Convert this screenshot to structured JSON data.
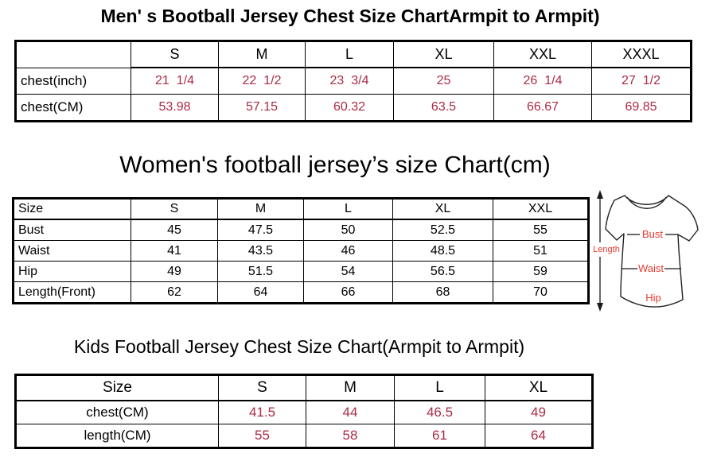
{
  "colors": {
    "value_red": "#ab2b45",
    "label_red": "#e8392f"
  },
  "mens_chart": {
    "title": "Men' s Bootball Jersey Chest Size ChartArmpit to Armpit)",
    "columns": [
      "",
      "S",
      "M",
      "L",
      "XL",
      "XXL",
      "XXXL"
    ],
    "rows": [
      {
        "label": "chest(inch)",
        "values": [
          "21  1/4",
          "22  1/2",
          "23  3/4",
          "25",
          "26  1/4",
          "27  1/2"
        ]
      },
      {
        "label": "chest(CM)",
        "values": [
          "53.98",
          "57.15",
          "60.32",
          "63.5",
          "66.67",
          "69.85"
        ]
      }
    ]
  },
  "womens_chart": {
    "title": "Women's football jersey’s size Chart(cm)",
    "columns": [
      "Size",
      "S",
      "M",
      "L",
      "XL",
      "XXL"
    ],
    "rows": [
      {
        "label": "Bust",
        "values": [
          "45",
          "47.5",
          "50",
          "52.5",
          "55"
        ]
      },
      {
        "label": "Waist",
        "values": [
          "41",
          "43.5",
          "46",
          "48.5",
          "51"
        ]
      },
      {
        "label": "Hip",
        "values": [
          "49",
          "51.5",
          "54",
          "56.5",
          "59"
        ]
      },
      {
        "label": "Length(Front)",
        "values": [
          "62",
          "64",
          "66",
          "68",
          "70"
        ]
      }
    ]
  },
  "diagram": {
    "length_label": "Length",
    "bust_label": "Bust",
    "waist_label": "Waist",
    "hip_label": "Hip"
  },
  "kids_chart": {
    "title": "Kids Football Jersey Chest Size Chart(Armpit to Armpit)",
    "columns": [
      "Size",
      "S",
      "M",
      "L",
      "XL"
    ],
    "rows": [
      {
        "label": "chest(CM)",
        "values": [
          "41.5",
          "44",
          "46.5",
          "49"
        ]
      },
      {
        "label": "length(CM)",
        "values": [
          "55",
          "58",
          "61",
          "64"
        ]
      }
    ]
  }
}
